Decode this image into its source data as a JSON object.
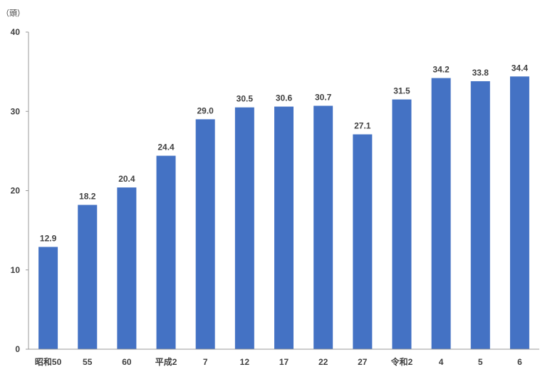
{
  "chart_data": {
    "type": "bar",
    "unit_label": "（頭）",
    "categories": [
      "昭和50",
      "55",
      "60",
      "平成2",
      "7",
      "12",
      "17",
      "22",
      "27",
      "令和2",
      "4",
      "5",
      "6"
    ],
    "values": [
      12.9,
      18.2,
      20.4,
      24.4,
      29.0,
      30.5,
      30.6,
      30.7,
      27.1,
      31.5,
      34.2,
      33.8,
      34.4
    ],
    "value_labels": [
      "12.9",
      "18.2",
      "20.4",
      "24.4",
      "29.0",
      "30.5",
      "30.6",
      "30.7",
      "27.1",
      "31.5",
      "34.2",
      "33.8",
      "34.4"
    ],
    "ylim": [
      0,
      40
    ],
    "yticks": [
      0,
      10,
      20,
      30,
      40
    ],
    "bar_color": "#4472C4",
    "grid": false,
    "legend": "none"
  }
}
